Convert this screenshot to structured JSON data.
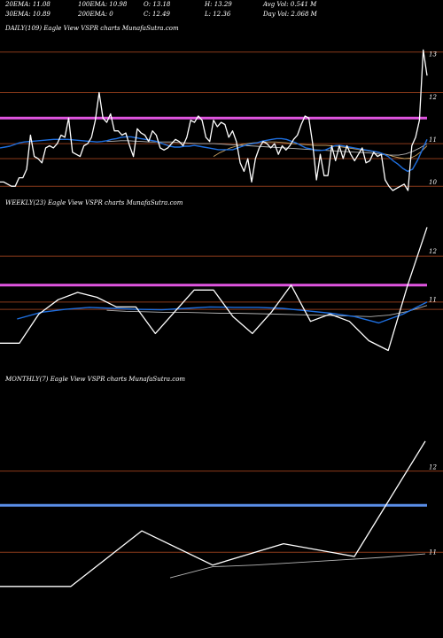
{
  "header": {
    "ema20": "20EMA: 11.08",
    "ema100": "100EMA: 10.98",
    "open": "O: 13.18",
    "high": "H: 13.29",
    "avg_vol": "Avg Vol: 0.541 M",
    "ema30": "30EMA: 10.89",
    "ema200": "200EMA: 0",
    "close": "C: 12.49",
    "low": "L: 12.36",
    "day_vol": "Day Vol: 2.068 M"
  },
  "panel_labels": {
    "daily": "DAILY(109) Eagle   View  VSPR charts MunafaSutra.com",
    "weekly": "WEEKLY(23) Eagle   View  VSPR charts MunafaSutra.com",
    "monthly": "MONTHLY(7) Eagle   View  VSPR charts MunafaSutra.com"
  },
  "colors": {
    "price": "#ffffff",
    "ema_fast": "#1e6fe0",
    "ema_slow": "#b4b4b4",
    "ema_tan": "#c8a060",
    "level_line": "#8b3a1a",
    "resistance_magenta": "#e055e0",
    "resistance_blue": "#5a8ee8"
  },
  "chart_data": [
    {
      "type": "line",
      "name": "DAILY",
      "ylim": [
        9.8,
        13.4
      ],
      "yticks": [
        "13",
        "12",
        "11",
        "10"
      ],
      "ytick_values": [
        13,
        12,
        11,
        10
      ],
      "levels": [
        13.05,
        12.1,
        10.9,
        10.55,
        9.9
      ],
      "resistance": 11.5,
      "price": [
        10.0,
        10.0,
        9.95,
        9.9,
        9.9,
        10.1,
        10.1,
        10.3,
        11.1,
        10.6,
        10.55,
        10.45,
        10.8,
        10.85,
        10.8,
        10.9,
        11.1,
        11.05,
        11.5,
        10.7,
        10.65,
        10.6,
        10.85,
        10.9,
        11.05,
        11.45,
        12.1,
        11.5,
        11.4,
        11.6,
        11.2,
        11.2,
        11.1,
        11.15,
        10.85,
        10.6,
        11.25,
        11.15,
        11.1,
        10.95,
        11.2,
        11.1,
        10.8,
        10.75,
        10.8,
        10.9,
        11.0,
        10.95,
        10.85,
        11.05,
        11.45,
        11.4,
        11.55,
        11.45,
        11.05,
        10.95,
        11.45,
        11.3,
        11.4,
        11.35,
        11.05,
        11.2,
        10.95,
        10.45,
        10.25,
        10.55,
        10.0,
        10.55,
        10.8,
        10.95,
        10.9,
        10.8,
        10.9,
        10.65,
        10.85,
        10.75,
        10.85,
        11.0,
        11.1,
        11.35,
        11.55,
        11.5,
        10.9,
        10.05,
        10.65,
        10.15,
        10.15,
        10.85,
        10.5,
        10.85,
        10.55,
        10.85,
        10.65,
        10.5,
        10.65,
        10.8,
        10.45,
        10.5,
        10.7,
        10.6,
        10.65,
        10.05,
        9.9,
        9.8,
        9.85,
        9.9,
        9.95,
        9.8,
        10.85,
        11.05,
        11.45,
        13.1,
        12.5
      ],
      "ema_fast": [
        10.8,
        10.82,
        10.84,
        10.88,
        10.92,
        10.94,
        10.95,
        10.96,
        10.97,
        10.98,
        10.99,
        11.0,
        11.0,
        11.0,
        11.0,
        10.99,
        10.98,
        10.97,
        10.96,
        10.95,
        10.94,
        10.95,
        10.97,
        11.0,
        11.02,
        11.05,
        11.06,
        11.06,
        11.04,
        11.02,
        11.0,
        10.98,
        10.96,
        10.92,
        10.88,
        10.84,
        10.82,
        10.82,
        10.84,
        10.84,
        10.86,
        10.84,
        10.82,
        10.8,
        10.78,
        10.76,
        10.76,
        10.76,
        10.76,
        10.8,
        10.84,
        10.88,
        10.9,
        10.92,
        10.96,
        10.98,
        11.0,
        11.02,
        11.02,
        11.0,
        10.96,
        10.92,
        10.86,
        10.8,
        10.78,
        10.74,
        10.74,
        10.75,
        10.8,
        10.85,
        10.86,
        10.84,
        10.82,
        10.8,
        10.78,
        10.76,
        10.74,
        10.72,
        10.7,
        10.66,
        10.6,
        10.5,
        10.42,
        10.32,
        10.25,
        10.3,
        10.5,
        10.75,
        11.0
      ],
      "ema_slow": [
        10.95,
        10.96,
        10.97,
        10.97,
        10.96,
        10.95,
        10.94,
        10.94,
        10.94,
        10.94,
        10.93,
        10.92,
        10.91,
        10.9,
        10.9,
        10.9,
        10.89,
        10.88,
        10.87,
        10.86,
        10.85,
        10.84,
        10.83,
        10.82,
        10.81,
        10.8,
        10.79,
        10.78,
        10.77,
        10.76,
        10.75,
        10.74,
        10.73,
        10.72,
        10.71,
        10.7,
        10.69,
        10.68,
        10.66,
        10.64,
        10.63,
        10.63,
        10.66,
        10.72,
        10.8,
        10.9
      ],
      "ema_tan": [
        10.6,
        10.68,
        10.74,
        10.8,
        10.84,
        10.88,
        10.9,
        10.92,
        10.93,
        10.94,
        10.94,
        10.94,
        10.93,
        10.92,
        10.9,
        10.89,
        10.88,
        10.87,
        10.86,
        10.86,
        10.86,
        10.85,
        10.84,
        10.82,
        10.8,
        10.78,
        10.76,
        10.74,
        10.72,
        10.7,
        10.67,
        10.64,
        10.6,
        10.57,
        10.55,
        10.56,
        10.62,
        10.72,
        10.85
      ]
    },
    {
      "type": "line",
      "name": "WEEKLY",
      "ylim": [
        9.5,
        12.8
      ],
      "yticks": [
        "12",
        "11"
      ],
      "ytick_values": [
        12,
        11
      ],
      "levels": [
        11.9,
        10.95,
        10.8
      ],
      "resistance": 11.3,
      "price": [
        10.1,
        10.1,
        10.7,
        11.0,
        11.15,
        11.05,
        10.85,
        10.85,
        10.3,
        10.75,
        11.2,
        11.2,
        10.65,
        10.3,
        10.75,
        11.3,
        10.55,
        10.7,
        10.55,
        10.15,
        9.95,
        11.3,
        12.5
      ],
      "ema_fast": [
        10.6,
        10.74,
        10.8,
        10.84,
        10.82,
        10.8,
        10.79,
        10.82,
        10.85,
        10.84,
        10.84,
        10.82,
        10.77,
        10.72,
        10.65,
        10.52,
        10.7,
        10.95
      ],
      "ema_slow": [
        10.78,
        10.76,
        10.75,
        10.74,
        10.74,
        10.73,
        10.72,
        10.72,
        10.71,
        10.7,
        10.69,
        10.68,
        10.67,
        10.66,
        10.65,
        10.68,
        10.76,
        10.88
      ]
    },
    {
      "type": "line",
      "name": "MONTHLY",
      "ylim": [
        10.1,
        12.9
      ],
      "yticks": [
        "12",
        "11"
      ],
      "ytick_values": [
        12,
        11
      ],
      "levels": [
        11.95,
        11.0
      ],
      "resistance": 11.55,
      "price": [
        10.6,
        10.6,
        11.25,
        10.85,
        11.1,
        10.95,
        12.3
      ],
      "ema_slow": [
        10.7,
        10.83,
        10.85,
        10.88,
        10.91,
        10.94,
        10.98
      ]
    }
  ]
}
